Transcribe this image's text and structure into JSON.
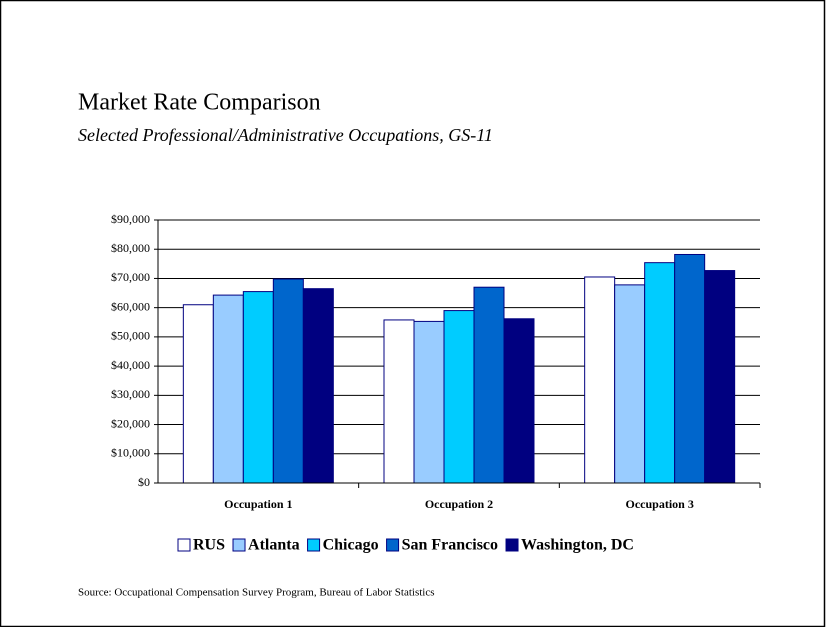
{
  "chart_data": {
    "type": "bar",
    "title": "Market Rate Comparison",
    "subtitle": "Selected Professional/Administrative Occupations, GS-11",
    "categories": [
      "Occupation 1",
      "Occupation 2",
      "Occupation 3"
    ],
    "series": [
      {
        "name": "RUS",
        "color": "#ffffff",
        "values": [
          61000,
          55800,
          70500
        ]
      },
      {
        "name": "Atlanta",
        "color": "#99ccff",
        "values": [
          64300,
          55300,
          67800
        ]
      },
      {
        "name": "Chicago",
        "color": "#00ccff",
        "values": [
          65500,
          59000,
          75400
        ]
      },
      {
        "name": "San Francisco",
        "color": "#0066cc",
        "values": [
          69800,
          67000,
          78200
        ]
      },
      {
        "name": "Washington, DC",
        "color": "#000080",
        "values": [
          66500,
          56200,
          72700
        ]
      }
    ],
    "ylim": [
      0,
      90000
    ],
    "yticks": [
      {
        "value": 0,
        "label": "$0"
      },
      {
        "value": 10000,
        "label": "$10,000"
      },
      {
        "value": 20000,
        "label": "$20,000"
      },
      {
        "value": 30000,
        "label": "$30,000"
      },
      {
        "value": 40000,
        "label": "$40,000"
      },
      {
        "value": 50000,
        "label": "$50,000"
      },
      {
        "value": 60000,
        "label": "$60,000"
      },
      {
        "value": 70000,
        "label": "$70,000"
      },
      {
        "value": 80000,
        "label": "$80,000"
      },
      {
        "value": 90000,
        "label": "$90,000"
      }
    ],
    "grid": true,
    "legend": "bottom",
    "source": "Source: Occupational Compensation Survey Program, Bureau of Labor Statistics"
  }
}
